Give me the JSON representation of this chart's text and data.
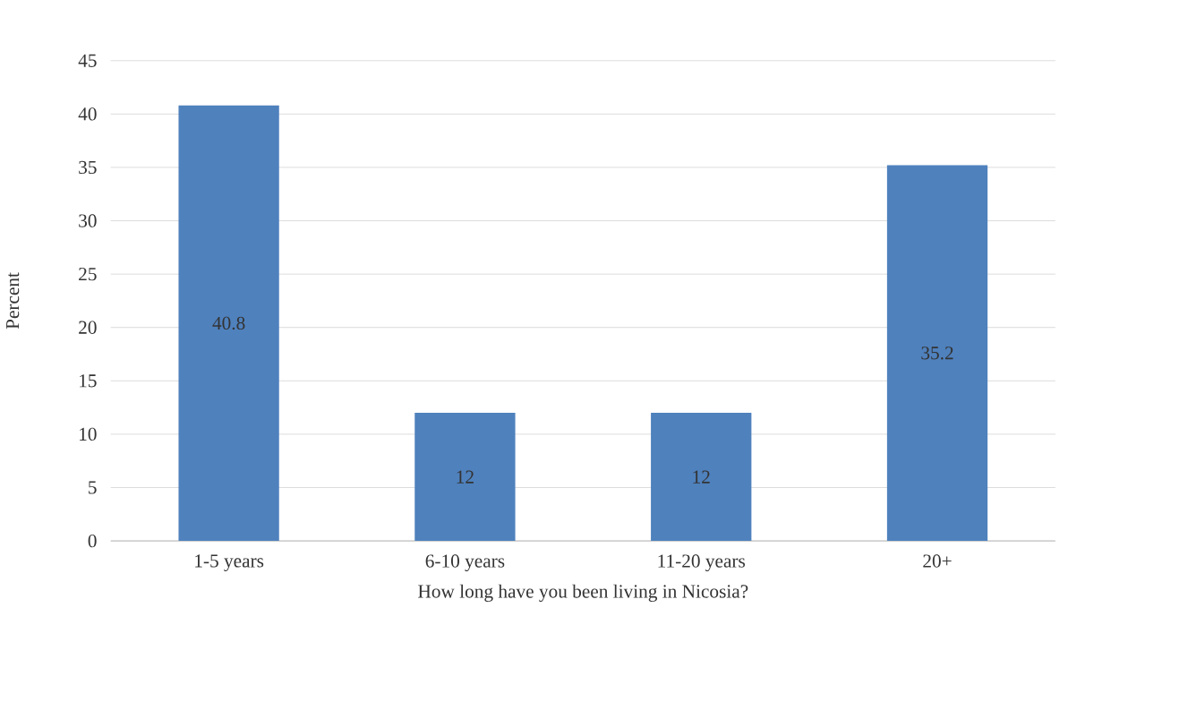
{
  "chart_data": {
    "type": "bar",
    "xlabel": "How long have you been living in Nicosia?",
    "ylabel": "Percent",
    "categories": [
      "1-5 years",
      "6-10 years",
      "11-20 years",
      "20+"
    ],
    "values": [
      40.8,
      12,
      12,
      35.2
    ],
    "color": "#4f81bd",
    "ylim": [
      0,
      45
    ],
    "yticks": [
      0,
      5,
      10,
      15,
      20,
      25,
      30,
      35,
      40,
      45
    ],
    "grid": "y",
    "data_labels": true
  }
}
